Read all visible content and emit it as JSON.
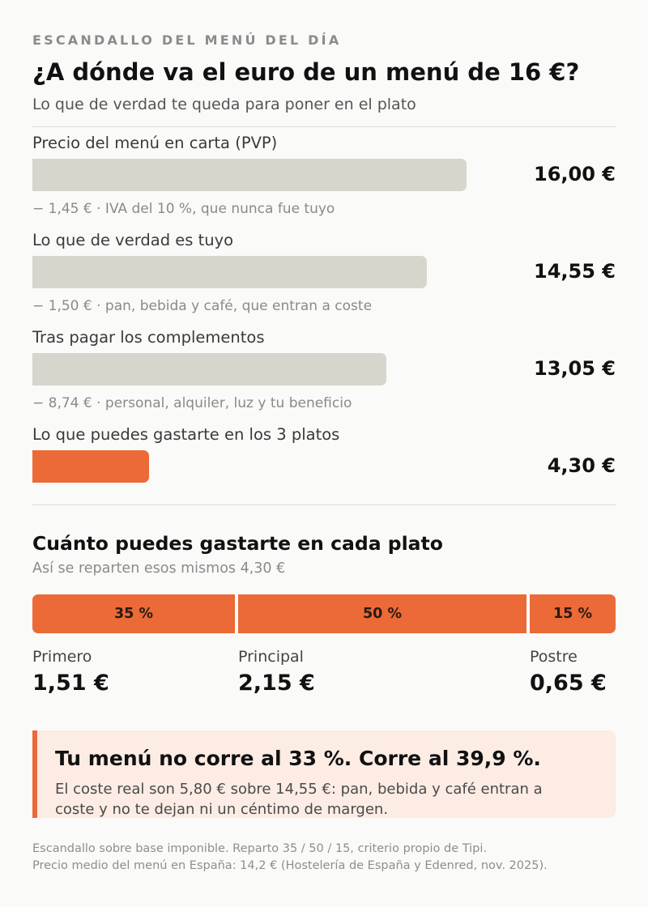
{
  "header": {
    "kicker": "ESCANDALLO DEL MENÚ DEL DÍA",
    "title": "¿A dónde va el euro de un menú de 16 €?",
    "subtitle": "Lo que de verdad te queda para poner en el plato"
  },
  "chart_data": [
    {
      "type": "bar",
      "orientation": "horizontal",
      "unit": "€",
      "xlim": [
        0,
        16
      ],
      "categories": [
        "Precio del menú en carta (PVP)",
        "Lo que de verdad es tuyo",
        "Tras pagar los complementos",
        "Lo que puedes gastarte en los 3 platos"
      ],
      "values": [
        16.0,
        14.55,
        13.05,
        4.3
      ],
      "value_labels": [
        "16,00 €",
        "14,55 €",
        "13,05 €",
        "4,30 €"
      ],
      "highlight_index": 3,
      "annotations": [
        "− 1,45 € · IVA del 10 %, que nunca fue tuyo",
        "− 1,50 € · pan, bebida y café, que entran a coste",
        "− 8,74 € · personal, alquiler, luz y tu beneficio"
      ],
      "colors": {
        "bar": "#d6d6cd",
        "highlight": "#eb6a37"
      }
    },
    {
      "type": "bar",
      "orientation": "stacked-horizontal",
      "title": "Cuánto puedes gastarte en cada plato",
      "subtitle": "Así se reparten esos mismos 4,30 €",
      "categories": [
        "Primero",
        "Principal",
        "Postre"
      ],
      "values": [
        35,
        50,
        15
      ],
      "value_labels": [
        "35 %",
        "50 %",
        "15 %"
      ],
      "amounts": [
        "1,51 €",
        "2,15 €",
        "0,65 €"
      ],
      "colors": {
        "segment": "#eb6a37"
      }
    }
  ],
  "callout": {
    "title": "Tu menú no corre al 33 %. Corre al 39,9 %.",
    "text": "El coste real son 5,80 € sobre 14,55 €: pan, bebida y café entran a coste y no te dejan ni un céntimo de margen."
  },
  "footer": {
    "line1": "Escandallo sobre base imponible. Reparto 35 / 50 / 15, criterio propio de Tipi.",
    "line2": "Precio medio del menú en España: 14,2 € (Hostelería de España y Edenred, nov. 2025)."
  }
}
